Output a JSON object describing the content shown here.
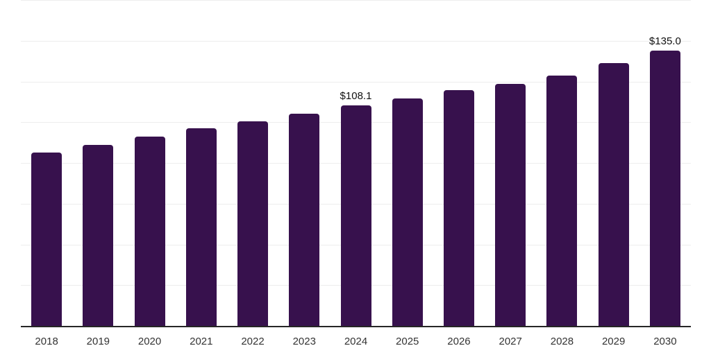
{
  "chart_data": {
    "type": "bar",
    "title": "",
    "xlabel": "",
    "ylabel": "",
    "categories": [
      "2018",
      "2019",
      "2020",
      "2021",
      "2022",
      "2023",
      "2024",
      "2025",
      "2026",
      "2027",
      "2028",
      "2029",
      "2030"
    ],
    "values": [
      85.1,
      88.9,
      92.9,
      97.0,
      100.4,
      104.3,
      108.1,
      111.8,
      115.7,
      118.8,
      122.9,
      129.0,
      135.0
    ],
    "data_labels": [
      "",
      "",
      "",
      "",
      "",
      "",
      "$108.1",
      "",
      "",
      "",
      "",
      "",
      "$135.0"
    ],
    "ylim": [
      0,
      160
    ],
    "gridline_step": 20,
    "grid": "horizontal",
    "legend": "none",
    "y_tick_labels_shown": false,
    "colors": {
      "bar": "#37114D",
      "gridline": "#ededed",
      "axis_line": "#262626",
      "tick_label": "#333333",
      "data_label": "#111111",
      "background": "#ffffff"
    }
  }
}
